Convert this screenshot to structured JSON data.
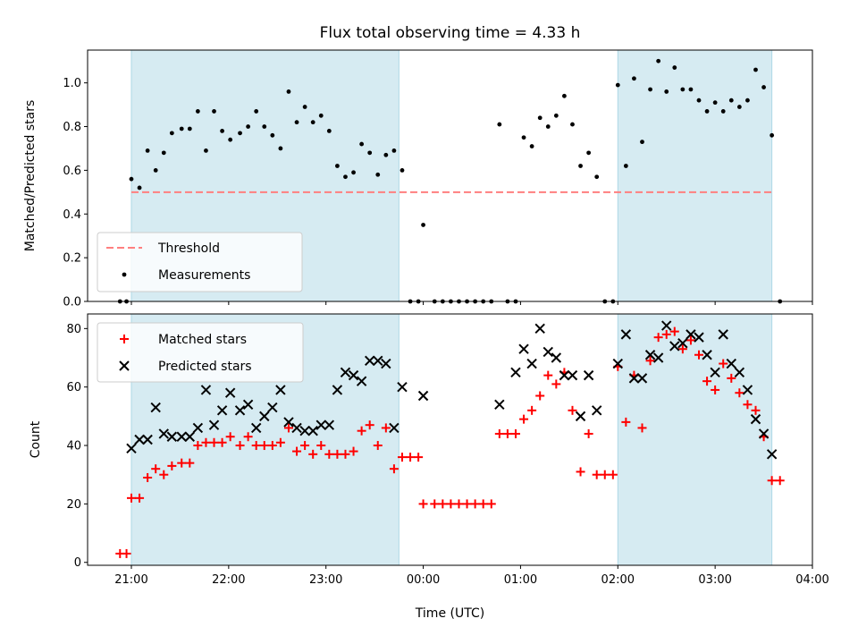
{
  "figure": {
    "title": "Flux total observing time = 4.33 h",
    "xlabel": "Time (UTC)"
  },
  "chart_data": [
    {
      "type": "scatter",
      "ylabel": "Matched/Predicted stars",
      "xlim": [
        "20:33",
        "04:00"
      ],
      "ylim": [
        0,
        1.15
      ],
      "yticks": [
        "0.0",
        "0.2",
        "0.4",
        "0.6",
        "0.8",
        "1.0"
      ],
      "grid": false,
      "legend_position": "lower-left",
      "shaded_intervals": [
        [
          "21:00",
          "23:45"
        ],
        [
          "02:00",
          "03:35"
        ]
      ],
      "threshold": {
        "name": "Threshold",
        "value": 0.5,
        "x_start": "21:00",
        "x_end": "03:35",
        "color": "#ff7f7f",
        "style": "dashed"
      },
      "series": [
        {
          "name": "Measurements",
          "color": "#000000",
          "marker": "dot",
          "x": [
            "20:53",
            "20:57",
            "21:00",
            "21:05",
            "21:10",
            "21:15",
            "21:20",
            "21:25",
            "21:31",
            "21:36",
            "21:41",
            "21:46",
            "21:51",
            "21:56",
            "22:01",
            "22:07",
            "22:12",
            "22:17",
            "22:22",
            "22:27",
            "22:32",
            "22:37",
            "22:42",
            "22:47",
            "22:52",
            "22:57",
            "23:02",
            "23:07",
            "23:12",
            "23:17",
            "23:22",
            "23:27",
            "23:32",
            "23:37",
            "23:42",
            "23:47",
            "23:52",
            "23:57",
            "00:00",
            "00:07",
            "00:12",
            "00:17",
            "00:22",
            "00:27",
            "00:32",
            "00:37",
            "00:42",
            "00:47",
            "00:52",
            "00:57",
            "01:02",
            "01:07",
            "01:12",
            "01:17",
            "01:22",
            "01:27",
            "01:32",
            "01:37",
            "01:42",
            "01:47",
            "01:52",
            "01:57",
            "02:00",
            "02:05",
            "02:10",
            "02:15",
            "02:20",
            "02:25",
            "02:30",
            "02:35",
            "02:40",
            "02:45",
            "02:50",
            "02:55",
            "03:00",
            "03:05",
            "03:10",
            "03:15",
            "03:20",
            "03:25",
            "03:30",
            "03:35",
            "03:40"
          ],
          "y": [
            0.0,
            0.0,
            0.56,
            0.52,
            0.69,
            0.6,
            0.68,
            0.77,
            0.79,
            0.79,
            0.87,
            0.69,
            0.87,
            0.78,
            0.74,
            0.77,
            0.8,
            0.87,
            0.8,
            0.76,
            0.7,
            0.96,
            0.82,
            0.89,
            0.82,
            0.85,
            0.78,
            0.62,
            0.57,
            0.59,
            0.72,
            0.68,
            0.58,
            0.67,
            0.69,
            0.6,
            0.0,
            0.0,
            0.35,
            0.0,
            0.0,
            0.0,
            0.0,
            0.0,
            0.0,
            0.0,
            0.0,
            0.81,
            0.0,
            0.0,
            0.75,
            0.71,
            0.84,
            0.8,
            0.85,
            0.94,
            0.81,
            0.62,
            0.68,
            0.57,
            0.0,
            0.0,
            0.99,
            0.62,
            1.02,
            0.73,
            0.97,
            1.1,
            0.96,
            1.07,
            0.97,
            0.97,
            0.92,
            0.87,
            0.91,
            0.87,
            0.92,
            0.89,
            0.92,
            1.06,
            0.98,
            0.76,
            0.0
          ]
        }
      ]
    },
    {
      "type": "scatter",
      "ylabel": "Count",
      "xlim": [
        "20:33",
        "04:00"
      ],
      "ylim": [
        -1,
        85
      ],
      "xticks": [
        "21:00",
        "22:00",
        "23:00",
        "00:00",
        "01:00",
        "02:00",
        "03:00",
        "04:00"
      ],
      "yticks": [
        "0",
        "20",
        "40",
        "60",
        "80"
      ],
      "grid": false,
      "legend_position": "upper-left",
      "shaded_intervals": [
        [
          "21:00",
          "23:45"
        ],
        [
          "02:00",
          "03:35"
        ]
      ],
      "series": [
        {
          "name": "Matched stars",
          "color": "#ff0000",
          "marker": "plus",
          "x": [
            "20:53",
            "20:57",
            "21:00",
            "21:05",
            "21:10",
            "21:15",
            "21:20",
            "21:25",
            "21:31",
            "21:36",
            "21:41",
            "21:46",
            "21:51",
            "21:56",
            "22:01",
            "22:07",
            "22:12",
            "22:17",
            "22:22",
            "22:27",
            "22:32",
            "22:37",
            "22:42",
            "22:47",
            "22:52",
            "22:57",
            "23:02",
            "23:07",
            "23:12",
            "23:17",
            "23:22",
            "23:27",
            "23:32",
            "23:37",
            "23:42",
            "23:47",
            "23:52",
            "23:57",
            "00:00",
            "00:07",
            "00:12",
            "00:17",
            "00:22",
            "00:27",
            "00:32",
            "00:37",
            "00:42",
            "00:47",
            "00:52",
            "00:57",
            "01:02",
            "01:07",
            "01:12",
            "01:17",
            "01:22",
            "01:27",
            "01:32",
            "01:37",
            "01:42",
            "01:47",
            "01:52",
            "01:57",
            "02:00",
            "02:05",
            "02:10",
            "02:15",
            "02:20",
            "02:25",
            "02:30",
            "02:35",
            "02:40",
            "02:45",
            "02:50",
            "02:55",
            "03:00",
            "03:05",
            "03:10",
            "03:15",
            "03:20",
            "03:25",
            "03:30",
            "03:35",
            "03:40"
          ],
          "y": [
            3,
            3,
            22,
            22,
            29,
            32,
            30,
            33,
            34,
            34,
            40,
            41,
            41,
            41,
            43,
            40,
            43,
            40,
            40,
            40,
            41,
            46,
            38,
            40,
            37,
            40,
            37,
            37,
            37,
            38,
            45,
            47,
            40,
            46,
            32,
            36,
            36,
            36,
            20,
            20,
            20,
            20,
            20,
            20,
            20,
            20,
            20,
            44,
            44,
            44,
            49,
            52,
            57,
            64,
            61,
            65,
            52,
            31,
            44,
            30,
            30,
            30,
            67,
            48,
            64,
            46,
            69,
            77,
            78,
            79,
            73,
            76,
            71,
            62,
            59,
            68,
            63,
            58,
            54,
            52,
            43,
            28,
            28
          ]
        },
        {
          "name": "Predicted stars",
          "color": "#000000",
          "marker": "x",
          "x": [
            "21:00",
            "21:05",
            "21:10",
            "21:15",
            "21:20",
            "21:25",
            "21:31",
            "21:36",
            "21:41",
            "21:46",
            "21:51",
            "21:56",
            "22:01",
            "22:07",
            "22:12",
            "22:17",
            "22:22",
            "22:27",
            "22:32",
            "22:37",
            "22:42",
            "22:47",
            "22:52",
            "22:57",
            "23:02",
            "23:07",
            "23:12",
            "23:17",
            "23:22",
            "23:27",
            "23:32",
            "23:37",
            "23:42",
            "23:47",
            "00:00",
            "00:47",
            "00:57",
            "01:02",
            "01:07",
            "01:12",
            "01:17",
            "01:22",
            "01:27",
            "01:32",
            "01:37",
            "01:42",
            "01:47",
            "02:00",
            "02:05",
            "02:10",
            "02:15",
            "02:20",
            "02:25",
            "02:30",
            "02:35",
            "02:40",
            "02:45",
            "02:50",
            "02:55",
            "03:00",
            "03:05",
            "03:10",
            "03:15",
            "03:20",
            "03:25",
            "03:30",
            "03:35"
          ],
          "y": [
            39,
            42,
            42,
            53,
            44,
            43,
            43,
            43,
            46,
            59,
            47,
            52,
            58,
            52,
            54,
            46,
            50,
            53,
            59,
            48,
            46,
            45,
            45,
            47,
            47,
            59,
            65,
            64,
            62,
            69,
            69,
            68,
            46,
            60,
            57,
            54,
            65,
            73,
            68,
            80,
            72,
            70,
            64,
            64,
            50,
            64,
            52,
            68,
            78,
            63,
            63,
            71,
            70,
            81,
            74,
            75,
            78,
            77,
            71,
            65,
            78,
            68,
            65,
            59,
            49,
            44,
            37
          ]
        }
      ]
    }
  ]
}
